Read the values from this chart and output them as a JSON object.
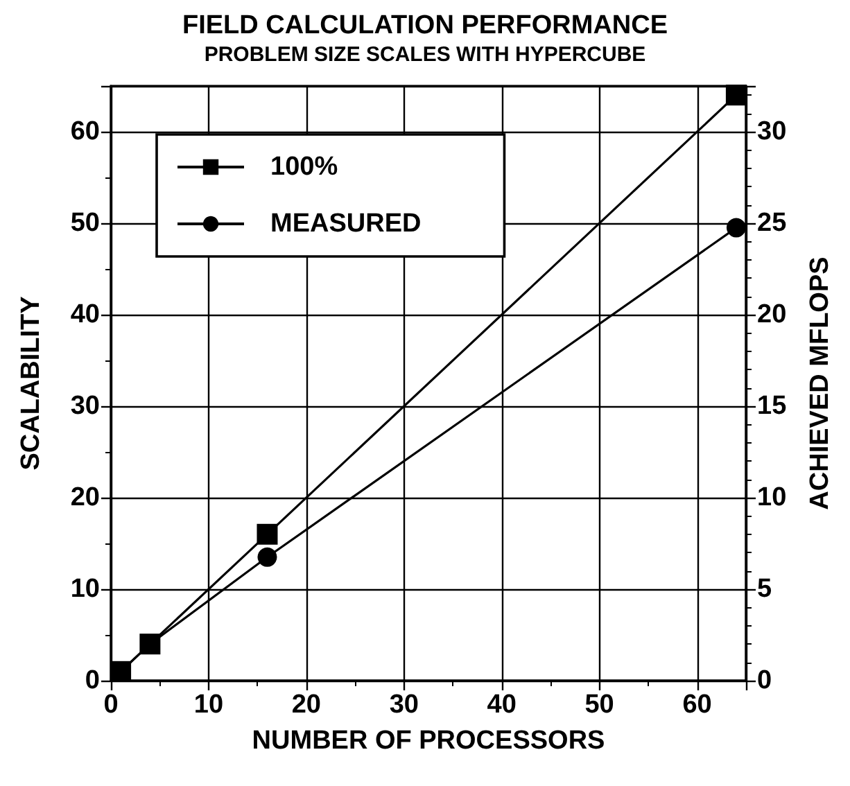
{
  "chart_data": {
    "type": "line",
    "title": "FIELD CALCULATION PERFORMANCE",
    "subtitle": "PROBLEM SIZE SCALES WITH HYPERCUBE",
    "xlabel": "NUMBER OF PROCESSORS",
    "ylabel": "SCALABILITY",
    "y2label": "ACHIEVED MFLOPS",
    "x": [
      1,
      4,
      16,
      64
    ],
    "series": [
      {
        "name": "100%",
        "color": "#000000",
        "marker": "square",
        "values": [
          1,
          4,
          16,
          64
        ]
      },
      {
        "name": "MEASURED",
        "color": "#000000",
        "marker": "circle",
        "values": [
          1,
          4,
          13.5,
          49.5
        ]
      }
    ],
    "xlim": [
      0,
      65
    ],
    "xticks": [
      0,
      {
        "value": 5,
        "label": null
      },
      10,
      {
        "value": 15,
        "label": null
      },
      20,
      {
        "value": 25,
        "label": null
      },
      30,
      {
        "value": 35,
        "label": null
      },
      40,
      {
        "value": 45,
        "label": null
      },
      50,
      {
        "value": 55,
        "label": null
      },
      60,
      {
        "value": 65,
        "label": null
      }
    ],
    "ylim": [
      0,
      65
    ],
    "yticks": [
      0,
      {
        "value": 5,
        "label": null
      },
      10,
      {
        "value": 15,
        "label": null
      },
      20,
      {
        "value": 25,
        "label": null
      },
      30,
      {
        "value": 35,
        "label": null
      },
      40,
      {
        "value": 45,
        "label": null
      },
      50,
      {
        "value": 55,
        "label": null
      },
      60,
      {
        "value": 65,
        "label": null
      }
    ],
    "y2lim": [
      0,
      32.5
    ],
    "y2ticks": [
      0,
      {
        "value": 1,
        "label": null
      },
      {
        "value": 2,
        "label": null
      },
      {
        "value": 3,
        "label": null
      },
      {
        "value": 4,
        "label": null
      },
      5,
      {
        "value": 6,
        "label": null
      },
      {
        "value": 7,
        "label": null
      },
      {
        "value": 8,
        "label": null
      },
      {
        "value": 9,
        "label": null
      },
      10,
      {
        "value": 11,
        "label": null
      },
      {
        "value": 12,
        "label": null
      },
      {
        "value": 13,
        "label": null
      },
      {
        "value": 14,
        "label": null
      },
      15,
      {
        "value": 16,
        "label": null
      },
      {
        "value": 17,
        "label": null
      },
      {
        "value": 18,
        "label": null
      },
      {
        "value": 19,
        "label": null
      },
      20,
      {
        "value": 21,
        "label": null
      },
      {
        "value": 22,
        "label": null
      },
      {
        "value": 23,
        "label": null
      },
      {
        "value": 24,
        "label": null
      },
      25,
      {
        "value": 26,
        "label": null
      },
      {
        "value": 27,
        "label": null
      },
      {
        "value": 28,
        "label": null
      },
      {
        "value": 29,
        "label": null
      },
      30,
      {
        "value": 31,
        "label": null
      },
      {
        "value": 32,
        "label": null
      }
    ],
    "grid": true,
    "legend": "top left",
    "line_style": "solid"
  }
}
